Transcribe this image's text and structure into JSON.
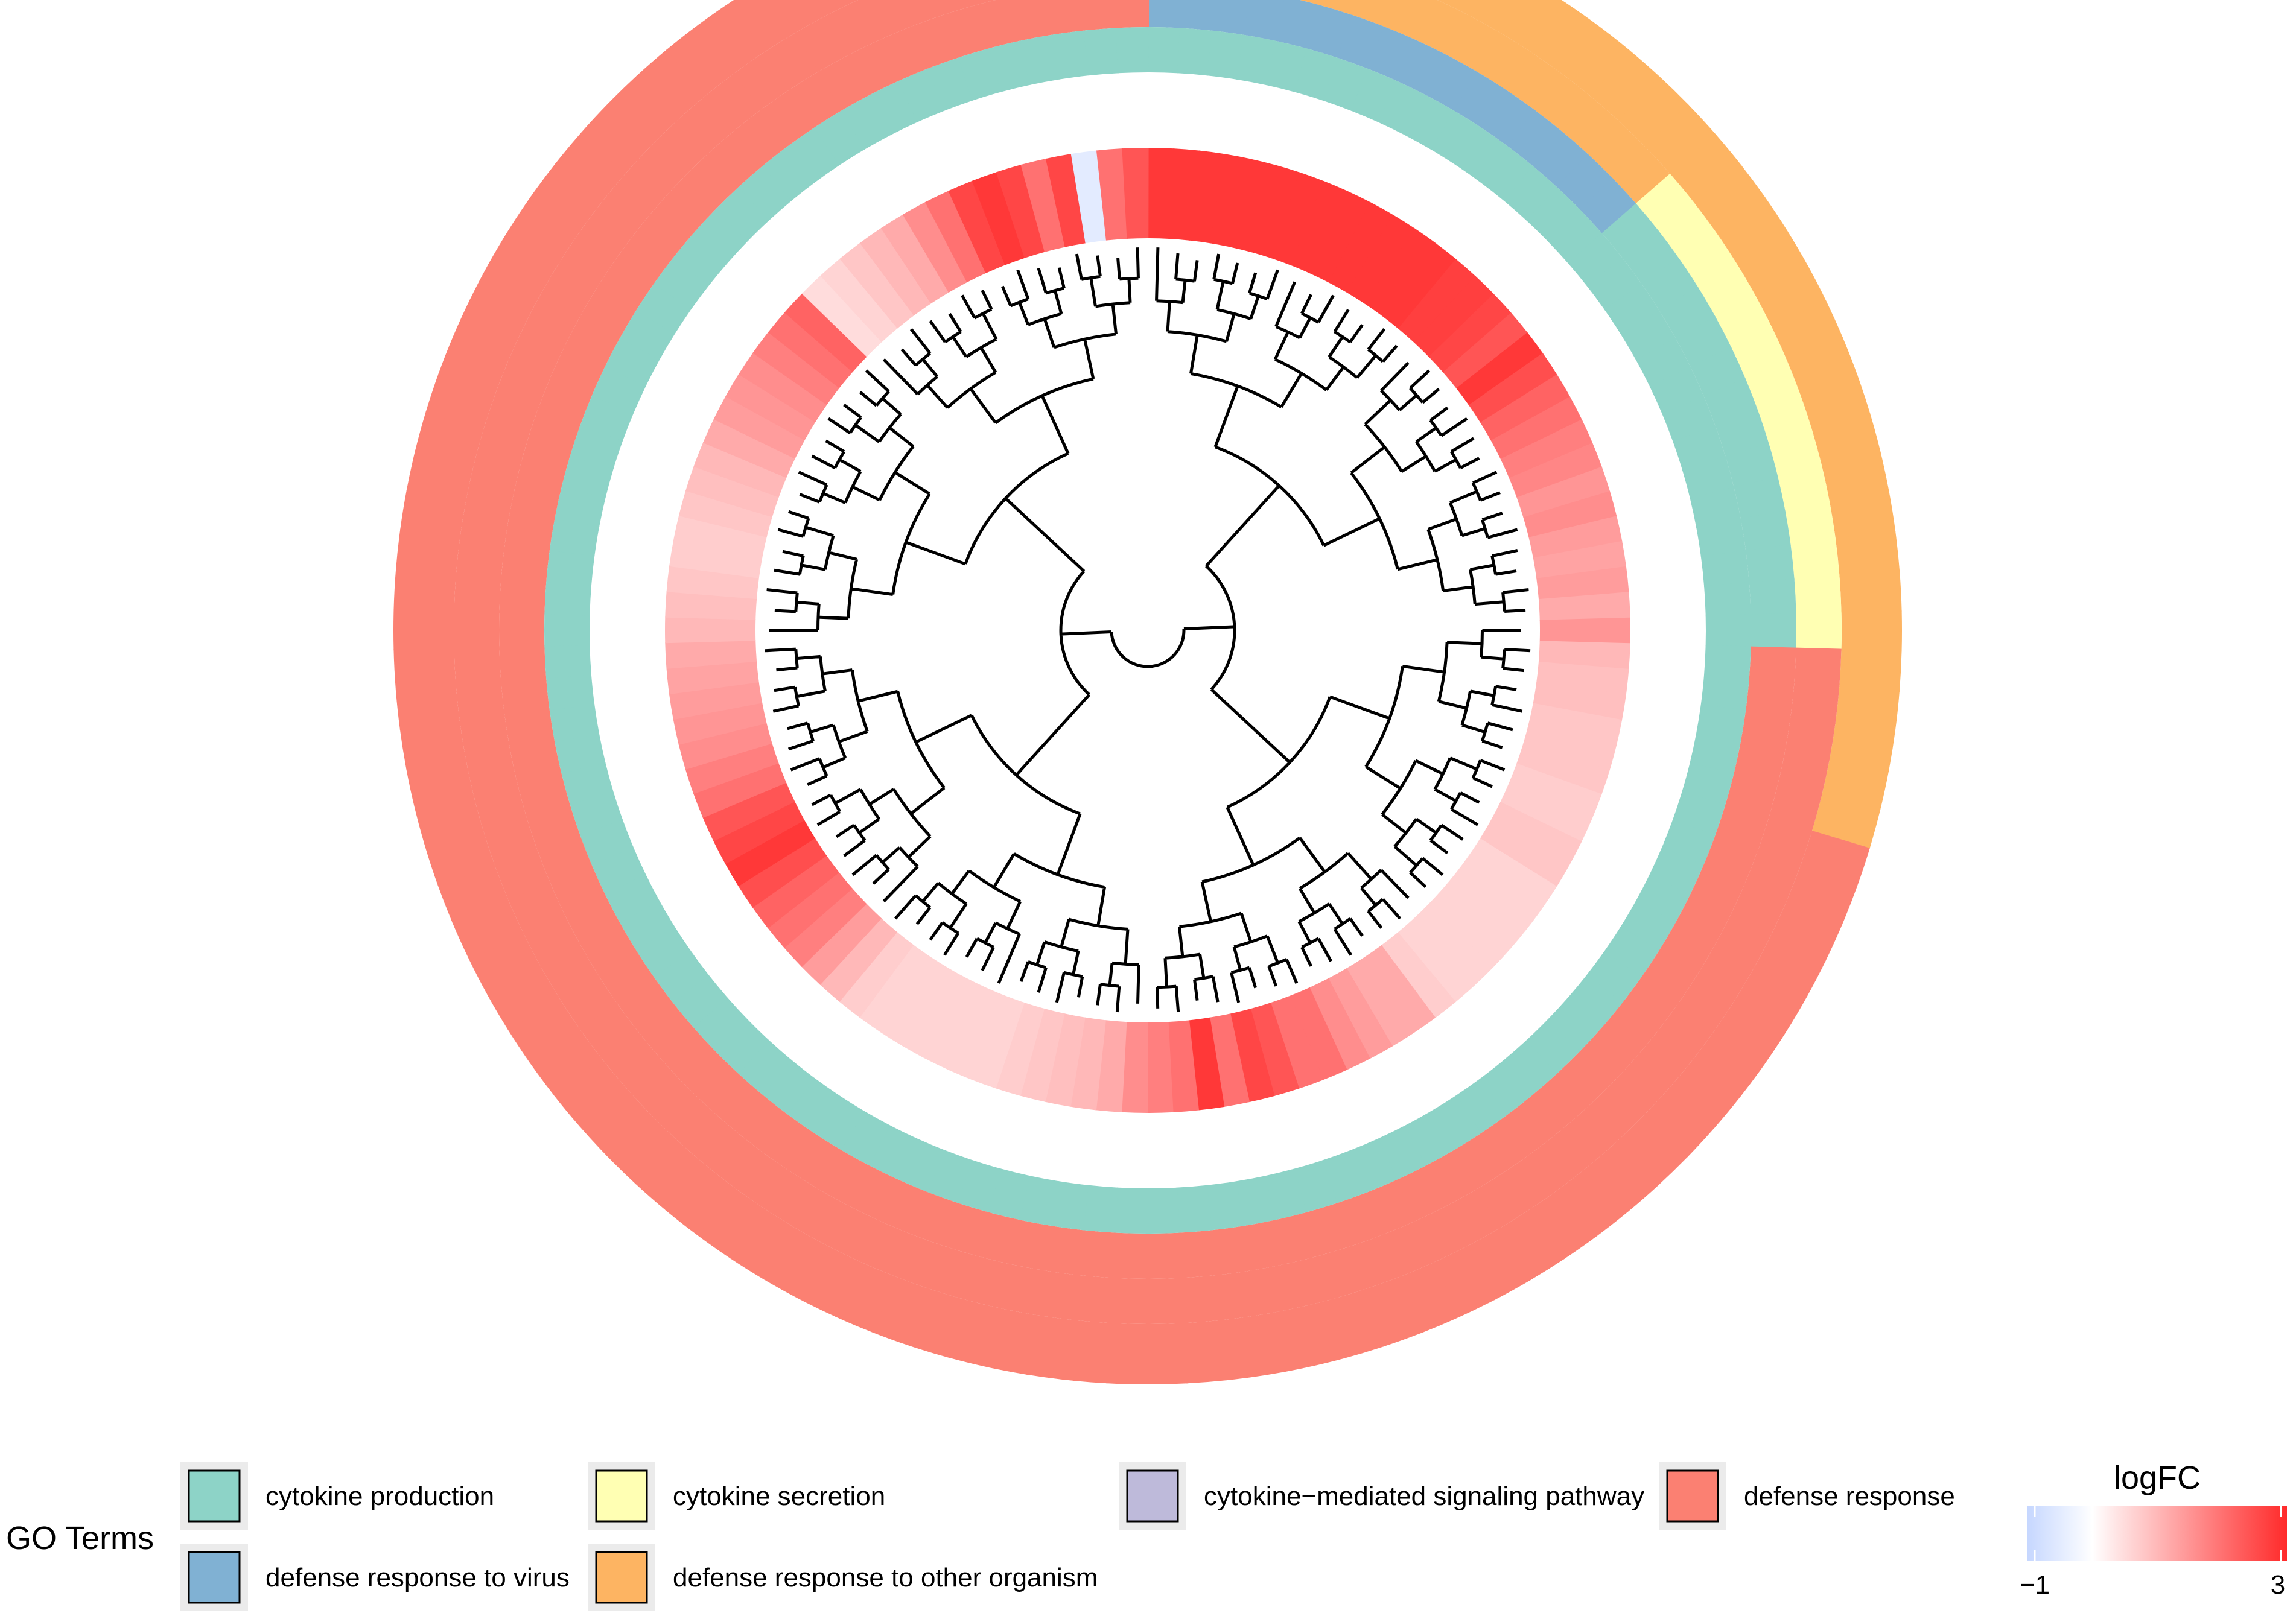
{
  "chart_data": {
    "type": "heatmap",
    "title": "",
    "layout": "circular heatmap with dendrogram",
    "go_terms_legend": {
      "title": "GO Terms",
      "items": [
        {
          "label": "cytokine production",
          "color": "#8DD3C7"
        },
        {
          "label": "cytokine secretion",
          "color": "#FFFFB3"
        },
        {
          "label": "cytokine−mediated signaling pathway",
          "color": "#BEBADA"
        },
        {
          "label": "defense response",
          "color": "#FB8072"
        },
        {
          "label": "defense response to virus",
          "color": "#80B1D3"
        },
        {
          "label": "defense response to other organism",
          "color": "#FDB462"
        }
      ]
    },
    "logfc_legend": {
      "title": "logFC",
      "min_label": "−1",
      "max_label": "3",
      "range": [
        -1,
        3
      ],
      "low_color": "#C6D7FF",
      "mid_color": "#FFFFFF",
      "high_color": "#FF2A2A"
    },
    "n_genes": 118,
    "logfc": [
      2.8,
      2.8,
      2.8,
      2.8,
      2.8,
      2.8,
      2.8,
      2.8,
      2.8,
      2.8,
      2.8,
      2.8,
      2.8,
      2.7,
      2.7,
      2.6,
      2.4,
      2.8,
      2.5,
      2.2,
      2.0,
      1.8,
      1.7,
      1.5,
      1.6,
      1.4,
      1.3,
      1.4,
      1.2,
      1.5,
      1.0,
      0.9,
      0.9,
      0.8,
      0.8,
      0.8,
      0.7,
      0.7,
      0.8,
      0.8,
      0.6,
      0.6,
      0.6,
      0.6,
      0.6,
      0.6,
      0.7,
      1.2,
      1.2,
      1.4,
      1.6,
      2.0,
      2.0,
      2.4,
      2.6,
      2.0,
      2.8,
      2.0,
      1.8,
      1.6,
      1.2,
      1.0,
      0.9,
      0.8,
      0.7,
      0.6,
      0.6,
      0.6,
      0.6,
      0.6,
      0.6,
      0.7,
      1.0,
      1.4,
      1.8,
      2.0,
      2.2,
      2.5,
      2.8,
      2.6,
      2.4,
      2.0,
      1.8,
      1.6,
      1.5,
      1.4,
      1.3,
      1.2,
      1.0,
      0.9,
      0.8,
      0.7,
      0.7,
      0.8,
      0.9,
      1.0,
      1.2,
      1.4,
      1.5,
      1.6,
      1.8,
      2.0,
      2.2,
      0.5,
      0.6,
      0.8,
      1.0,
      1.2,
      1.6,
      2.0,
      2.6,
      2.8,
      2.6,
      2.0,
      2.6,
      -0.5,
      2.0,
      2.4
    ],
    "ring_categories": {
      "ring1": [
        6,
        6,
        6,
        6,
        6,
        6,
        6,
        6,
        6,
        6,
        6,
        6,
        6,
        6,
        6,
        6,
        6,
        6,
        6,
        6,
        6,
        6,
        6,
        6,
        6,
        6,
        6,
        6,
        6,
        6,
        6,
        6,
        6,
        6,
        6,
        4,
        4,
        4,
        4,
        4,
        4,
        4,
        4,
        4,
        4,
        4,
        4,
        4,
        4,
        4,
        4,
        4,
        4,
        4,
        4,
        4,
        4,
        4,
        4,
        4,
        4,
        4,
        4,
        4,
        4,
        4,
        4,
        4,
        4,
        4,
        4,
        4,
        4,
        4,
        4,
        4,
        4,
        4,
        4,
        4,
        4,
        4,
        4,
        4,
        4,
        4,
        4,
        4,
        4,
        4,
        4,
        4,
        4,
        4,
        4,
        4,
        4,
        4,
        4,
        4,
        4,
        4,
        4,
        4,
        4,
        4,
        4,
        4,
        4,
        4,
        4,
        4,
        4,
        4,
        4,
        4,
        4,
        4
      ],
      "ring2": [
        6,
        6,
        6,
        6,
        6,
        6,
        6,
        6,
        6,
        6,
        6,
        6,
        6,
        6,
        6,
        6,
        2,
        2,
        2,
        2,
        2,
        2,
        2,
        2,
        2,
        2,
        2,
        2,
        2,
        2,
        4,
        4,
        4,
        4,
        4,
        4,
        4,
        4,
        4,
        4,
        4,
        4,
        4,
        4,
        4,
        4,
        4,
        4,
        4,
        4,
        4,
        4,
        4,
        4,
        4,
        4,
        4,
        4,
        4,
        4,
        4,
        4,
        4,
        4,
        4,
        4,
        4,
        4,
        4,
        4,
        4,
        4,
        4,
        4,
        4,
        4,
        4,
        4,
        4,
        4,
        4,
        4,
        4,
        4,
        4,
        4,
        4,
        4,
        4,
        4,
        4,
        4,
        4,
        4,
        4,
        4,
        4,
        4,
        4,
        4,
        4,
        4,
        4,
        4,
        4,
        4,
        4,
        4,
        4,
        4,
        4,
        4,
        4,
        4,
        4,
        4,
        4,
        4
      ],
      "ring3": [
        5,
        5,
        5,
        5,
        5,
        5,
        5,
        5,
        5,
        5,
        5,
        5,
        5,
        5,
        5,
        5,
        1,
        1,
        1,
        1,
        1,
        1,
        1,
        1,
        1,
        1,
        1,
        1,
        1,
        1,
        4,
        4,
        4,
        4,
        4,
        4,
        4,
        4,
        4,
        4,
        4,
        4,
        4,
        4,
        4,
        4,
        4,
        4,
        4,
        4,
        4,
        4,
        4,
        4,
        4,
        4,
        4,
        4,
        4,
        4,
        4,
        4,
        4,
        4,
        4,
        4,
        4,
        4,
        4,
        4,
        4,
        4,
        4,
        4,
        4,
        4,
        4,
        4,
        4,
        4,
        4,
        4,
        4,
        4,
        4,
        4,
        4,
        4,
        4,
        4,
        4,
        4,
        4,
        4,
        4,
        4,
        4,
        4,
        4,
        4,
        4,
        4,
        4,
        4,
        4,
        4,
        4,
        4,
        4,
        4,
        4,
        4,
        4,
        4,
        4,
        4,
        4,
        4
      ],
      "ring4": [
        1,
        1,
        1,
        1,
        1,
        1,
        1,
        1,
        1,
        1,
        1,
        1,
        1,
        1,
        1,
        1,
        1,
        1,
        1,
        1,
        1,
        1,
        1,
        1,
        1,
        1,
        1,
        1,
        1,
        1,
        1,
        1,
        1,
        1,
        1,
        1,
        1,
        1,
        1,
        1,
        1,
        1,
        1,
        1,
        1,
        1,
        1,
        1,
        1,
        1,
        1,
        1,
        1,
        1,
        1,
        1,
        1,
        1,
        1,
        1,
        1,
        1,
        1,
        1,
        1,
        1,
        1,
        1,
        1,
        1,
        1,
        1,
        1,
        1,
        1,
        1,
        1,
        1,
        1,
        1,
        1,
        1,
        1,
        1,
        1,
        1,
        1,
        1,
        1,
        1,
        1,
        1,
        1,
        1,
        1,
        1,
        1,
        1,
        1,
        1,
        1,
        1,
        1,
        1,
        1,
        1,
        1,
        1,
        1,
        1,
        1,
        1,
        1,
        1,
        1,
        1,
        1,
        1
      ],
      "ring5": [
        0,
        0,
        0,
        0,
        0,
        0,
        0,
        0,
        0,
        0,
        0,
        0,
        0,
        0,
        0,
        0,
        0,
        0,
        0,
        0,
        0,
        0,
        0,
        0,
        0,
        0,
        0,
        0,
        0,
        0,
        0,
        0,
        0,
        0,
        0,
        0,
        0,
        0,
        0,
        0,
        0,
        0,
        0,
        0,
        0,
        0,
        0,
        0,
        0,
        0,
        0,
        0,
        0,
        0,
        0,
        0,
        0,
        0,
        0,
        0,
        0,
        0,
        0,
        0,
        0,
        0,
        0,
        0,
        0,
        0,
        0,
        0,
        0,
        0,
        0,
        0,
        0,
        0,
        0,
        0,
        0,
        0,
        0,
        0,
        0,
        0,
        0,
        0,
        0,
        0,
        0,
        0,
        0,
        0,
        0,
        0,
        0,
        0,
        0,
        0,
        0,
        0,
        0,
        0,
        0,
        0,
        0,
        0,
        0,
        0,
        0,
        0,
        0,
        0,
        0,
        0,
        0,
        0
      ]
    }
  }
}
